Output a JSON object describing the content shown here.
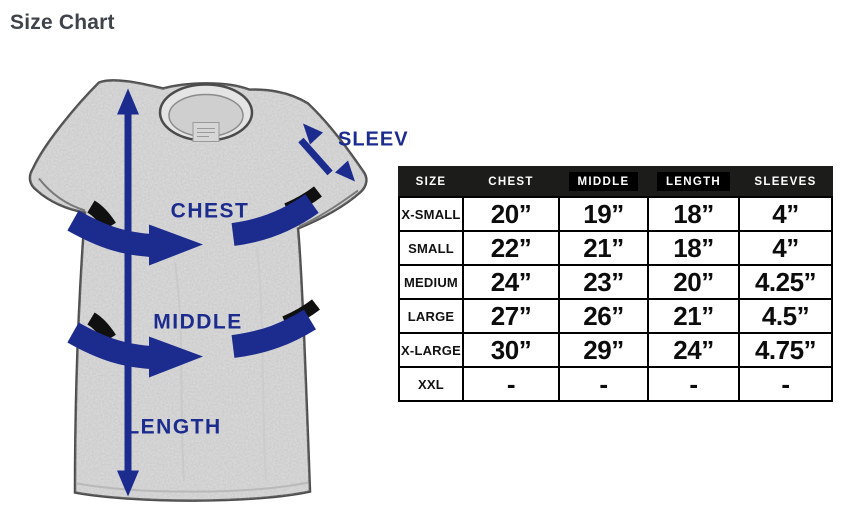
{
  "page": {
    "title": "Size Chart"
  },
  "diagram": {
    "description": "heather gray t-shirt with navy measurement arrows",
    "labels": {
      "chest": "CHEST",
      "middle": "MIDDLE",
      "length": "LENGTH",
      "sleeve": "SLEEVE"
    },
    "colors": {
      "arrow_navy": "#1b2b8e",
      "shirt_gray": "#dedede",
      "outline_gray": "#4b4b4b"
    }
  },
  "size_table": {
    "columns": [
      "SIZE",
      "CHEST",
      "MIDDLE",
      "LENGTH",
      "SLEEVES"
    ],
    "highlighted_columns": [
      "MIDDLE",
      "LENGTH"
    ],
    "header_bg": "#1c1c1a",
    "highlight_bg": "#000000",
    "header_text_color": "#ffffff",
    "rows": [
      {
        "size": "X-SMALL",
        "values": [
          "20”",
          "19”",
          "18”",
          "4”"
        ]
      },
      {
        "size": "SMALL",
        "values": [
          "22”",
          "21”",
          "18”",
          "4”"
        ]
      },
      {
        "size": "MEDIUM",
        "values": [
          "24”",
          "23”",
          "20”",
          "4.25”"
        ]
      },
      {
        "size": "LARGE",
        "values": [
          "27”",
          "26”",
          "21”",
          "4.5”"
        ]
      },
      {
        "size": "X-LARGE",
        "values": [
          "30”",
          "29”",
          "24”",
          "4.75”"
        ]
      },
      {
        "size": "XXL",
        "values": [
          "-",
          "-",
          "-",
          "-"
        ]
      }
    ]
  }
}
